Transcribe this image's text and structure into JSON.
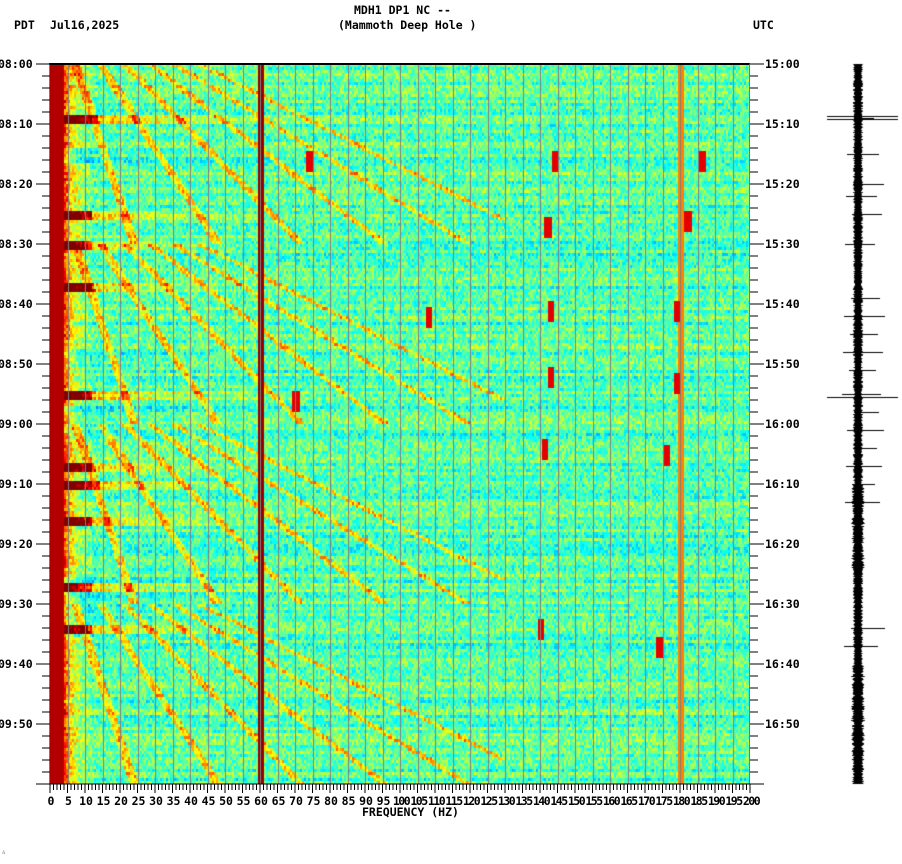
{
  "header": {
    "station_line": "MDH1 DP1 NC --",
    "station_name": "(Mammoth Deep Hole )",
    "left_timezone": "PDT",
    "date": "Jul16,2025",
    "right_timezone": "UTC"
  },
  "footer": {
    "mark": "∴"
  },
  "colors": {
    "background": "#ffffff",
    "axis": "#000000",
    "gridline": "#7f7f7f",
    "colormap": [
      "#00007f",
      "#0000ff",
      "#007fff",
      "#00ffff",
      "#7fff7f",
      "#ffff00",
      "#ff7f00",
      "#ff0000",
      "#7f0000"
    ],
    "waveform": "#000000"
  },
  "chart_data": {
    "type": "heatmap",
    "title": "MDH1 DP1 NC -- (Mammoth Deep Hole )",
    "subtitle": "Jul16,2025",
    "xlabel": "FREQUENCY (HZ)",
    "ylabel_left": "PDT",
    "ylabel_right": "UTC",
    "xlim": [
      0,
      200
    ],
    "x_ticks": [
      0,
      5,
      10,
      15,
      20,
      25,
      30,
      35,
      40,
      45,
      50,
      55,
      60,
      65,
      70,
      75,
      80,
      85,
      90,
      95,
      100,
      105,
      110,
      115,
      120,
      125,
      130,
      135,
      140,
      145,
      150,
      155,
      160,
      165,
      170,
      175,
      180,
      185,
      190,
      195,
      200
    ],
    "x_minor_tick_step": 1,
    "y_ticks_left": [
      "08:00",
      "08:10",
      "08:20",
      "08:30",
      "08:40",
      "08:50",
      "09:00",
      "09:10",
      "09:20",
      "09:30",
      "09:40",
      "09:50"
    ],
    "y_ticks_right": [
      "15:00",
      "15:10",
      "15:20",
      "15:30",
      "15:40",
      "15:50",
      "16:00",
      "16:10",
      "16:20",
      "16:30",
      "16:40",
      "16:50"
    ],
    "y_minor_tick_minutes": 2,
    "time_range_minutes": 120,
    "grid": {
      "vertical_lines_every_hz": 5
    },
    "features": {
      "persistent_lines_hz": [
        60,
        180
      ],
      "low_freq_strong_band_hz": [
        0,
        4
      ],
      "strong_broadband_rows_min": [
        9,
        25,
        30,
        37,
        55,
        67,
        70,
        76,
        87,
        94
      ],
      "quiet_rows_min": [
        [
          14,
          16
        ],
        [
          47,
          50
        ],
        [
          57,
          61
        ],
        [
          85,
          95
        ]
      ],
      "drifting_tones_hz": "multiple curved harmonic traces sweeping from ~10 Hz up to ~120 Hz over each 30-min interval",
      "transient_spots": [
        {
          "hz": 74,
          "min": 16
        },
        {
          "hz": 144,
          "min": 16
        },
        {
          "hz": 186,
          "min": 16
        },
        {
          "hz": 142,
          "min": 27
        },
        {
          "hz": 182,
          "min": 26
        },
        {
          "hz": 108,
          "min": 42
        },
        {
          "hz": 143,
          "min": 41
        },
        {
          "hz": 179,
          "min": 41
        },
        {
          "hz": 143,
          "min": 52
        },
        {
          "hz": 179,
          "min": 53
        },
        {
          "hz": 70,
          "min": 56
        },
        {
          "hz": 141,
          "min": 64
        },
        {
          "hz": 176,
          "min": 65
        },
        {
          "hz": 140,
          "min": 94
        },
        {
          "hz": 174,
          "min": 97
        }
      ]
    },
    "waveform_events_min": [
      9,
      15,
      20,
      22,
      25,
      30,
      39,
      42,
      45,
      48,
      51,
      55,
      55.5,
      58,
      61,
      64,
      67,
      70,
      73,
      94,
      97
    ]
  }
}
